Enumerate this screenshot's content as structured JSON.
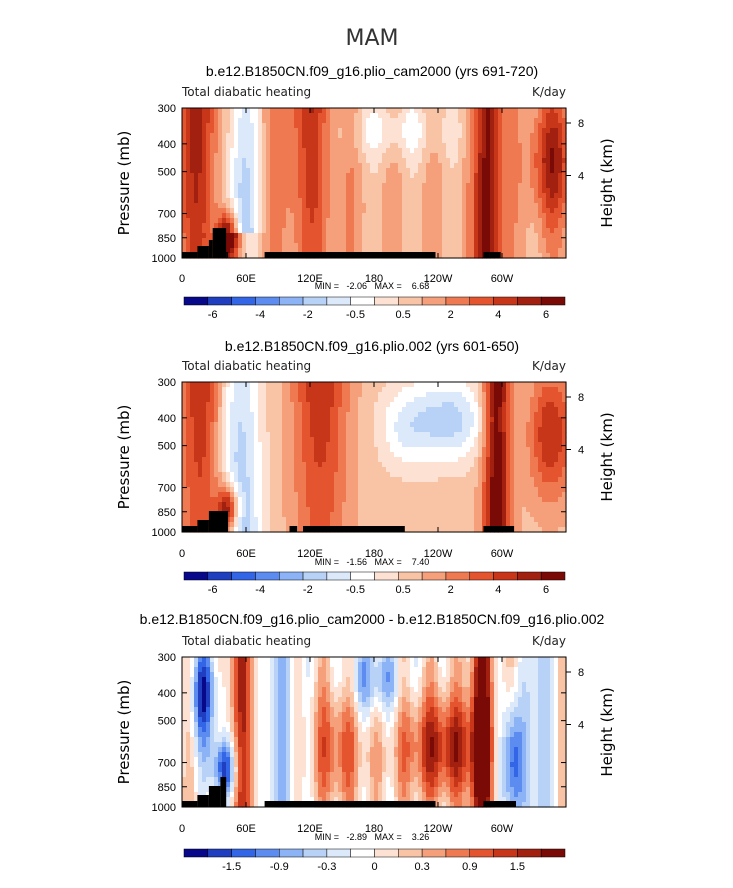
{
  "figure_title": "MAM",
  "chart_data": [
    {
      "type": "heatmap",
      "title": "b.e12.B1850CN.f09_g16.plio_cam2000 (yrs 691-720)",
      "left_label": "Total diabatic heating",
      "units_label": "K/day",
      "ylabel": "Pressure (mb)",
      "y2label": "Height (km)",
      "y_ticks": [
        "300",
        "400",
        "500",
        "700",
        "850",
        "1000"
      ],
      "y2_ticks": [
        "8",
        "4"
      ],
      "x_ticks": [
        "0",
        "60E",
        "120E",
        "180",
        "120W",
        "60W"
      ],
      "min_max_text": "MIN =   -2.06   MAX =    6.68",
      "colorbar": {
        "labels": [
          "-6",
          "-4",
          "-2",
          "-0.5",
          "0.5",
          "2",
          "4",
          "6"
        ],
        "colors": [
          "#08088a",
          "#1f3fc0",
          "#3366e6",
          "#5c8cf0",
          "#8cb3f5",
          "#b8d2f7",
          "#dce9fa",
          "#ffffff",
          "#fde2d3",
          "#f9c4a6",
          "#f5a07a",
          "#ef7a52",
          "#e4552f",
          "#c8361a",
          "#a1200f",
          "#7a0a06"
        ]
      }
    },
    {
      "type": "heatmap",
      "title": "b.e12.B1850CN.f09_g16.plio.002 (yrs 601-650)",
      "left_label": "Total diabatic heating",
      "units_label": "K/day",
      "ylabel": "Pressure (mb)",
      "y2label": "Height (km)",
      "y_ticks": [
        "300",
        "400",
        "500",
        "700",
        "850",
        "1000"
      ],
      "y2_ticks": [
        "8",
        "4"
      ],
      "x_ticks": [
        "0",
        "60E",
        "120E",
        "180",
        "120W",
        "60W"
      ],
      "min_max_text": "MIN =   -1.56   MAX =    7.40",
      "colorbar": {
        "labels": [
          "-6",
          "-4",
          "-2",
          "-0.5",
          "0.5",
          "2",
          "4",
          "6"
        ],
        "colors": [
          "#08088a",
          "#1f3fc0",
          "#3366e6",
          "#5c8cf0",
          "#8cb3f5",
          "#b8d2f7",
          "#dce9fa",
          "#ffffff",
          "#fde2d3",
          "#f9c4a6",
          "#f5a07a",
          "#ef7a52",
          "#e4552f",
          "#c8361a",
          "#a1200f",
          "#7a0a06"
        ]
      }
    },
    {
      "type": "heatmap",
      "title": "b.e12.B1850CN.f09_g16.plio_cam2000 - b.e12.B1850CN.f09_g16.plio.002",
      "left_label": "Total diabatic heating",
      "units_label": "K/day",
      "ylabel": "Pressure (mb)",
      "y2label": "Height (km)",
      "y_ticks": [
        "300",
        "400",
        "500",
        "700",
        "850",
        "1000"
      ],
      "y2_ticks": [
        "8",
        "4"
      ],
      "x_ticks": [
        "0",
        "60E",
        "120E",
        "180",
        "120W",
        "60W"
      ],
      "min_max_text": "MIN =   -2.89   MAX =    3.26",
      "colorbar": {
        "labels": [
          "-1.5",
          "-0.9",
          "-0.3",
          "0",
          "0.3",
          "0.9",
          "1.5"
        ],
        "colors": [
          "#08088a",
          "#1f3fc0",
          "#3366e6",
          "#5c8cf0",
          "#8cb3f5",
          "#b8d2f7",
          "#dce9fa",
          "#ffffff",
          "#fde2d3",
          "#f9c4a6",
          "#f5a07a",
          "#ef7a52",
          "#e4552f",
          "#c8361a",
          "#a1200f",
          "#7a0a06"
        ]
      }
    }
  ]
}
